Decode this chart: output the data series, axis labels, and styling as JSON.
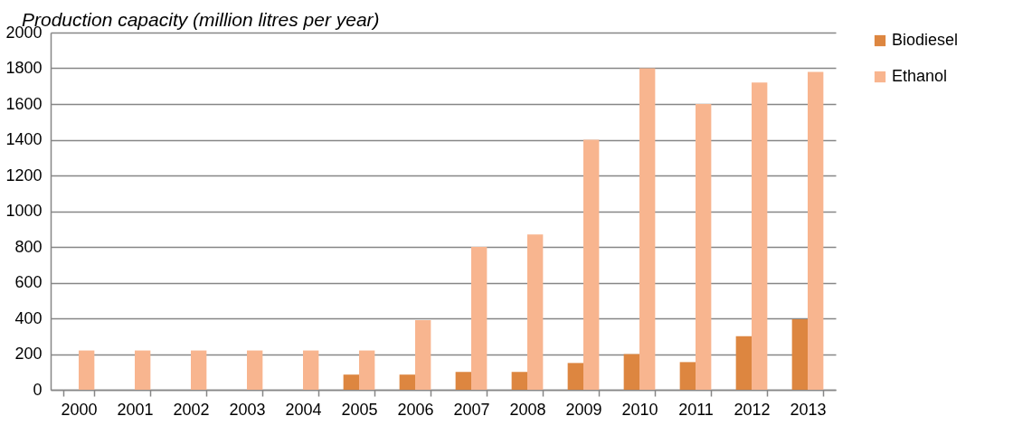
{
  "chart_data": {
    "type": "bar",
    "title": "Production capacity (million litres per year)",
    "categories": [
      "2000",
      "2001",
      "2002",
      "2003",
      "2004",
      "2005",
      "2006",
      "2007",
      "2008",
      "2009",
      "2010",
      "2011",
      "2012",
      "2013"
    ],
    "series": [
      {
        "name": "Biodiesel",
        "color": "#dd8640",
        "values": [
          null,
          null,
          null,
          null,
          null,
          85,
          85,
          100,
          100,
          150,
          200,
          155,
          300,
          395
        ]
      },
      {
        "name": "Ethanol",
        "color": "#f8b58f",
        "values": [
          220,
          220,
          220,
          220,
          220,
          220,
          390,
          800,
          870,
          1400,
          1800,
          1600,
          1720,
          1780
        ]
      }
    ],
    "ylim": [
      0,
      2000
    ],
    "yticks": [
      0,
      200,
      400,
      600,
      800,
      1000,
      1200,
      1400,
      1600,
      1800,
      2000
    ],
    "grid": "y",
    "legend": "right"
  }
}
